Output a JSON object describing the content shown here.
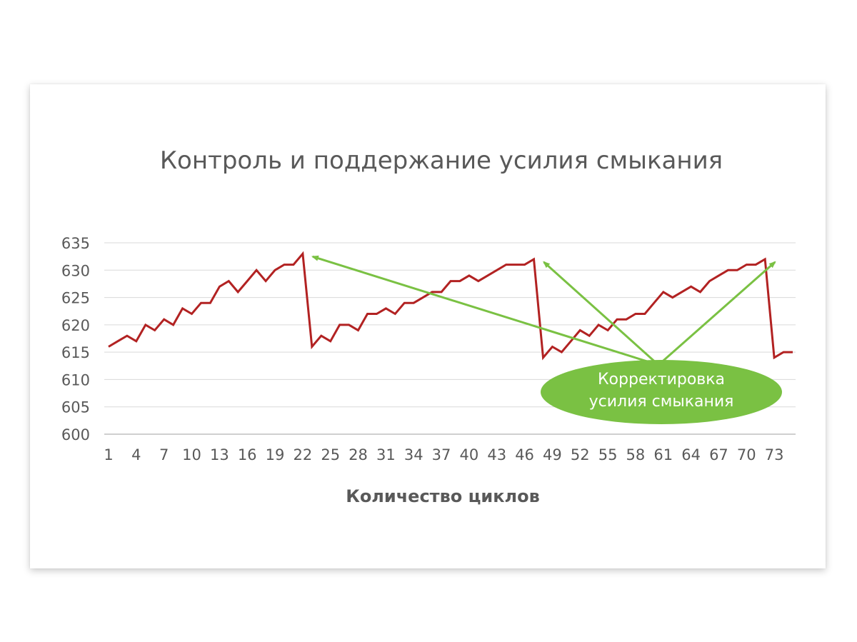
{
  "chart_data": {
    "type": "line",
    "title": "Контроль и поддержание усилия смыкания",
    "xlabel": "Количество циклов",
    "ylabel": "",
    "ylim": [
      600,
      635
    ],
    "yticks": [
      600,
      605,
      610,
      615,
      620,
      625,
      630,
      635
    ],
    "x_tick_labels": [
      "1",
      "4",
      "7",
      "10",
      "13",
      "16",
      "19",
      "22",
      "25",
      "28",
      "31",
      "34",
      "37",
      "40",
      "43",
      "46",
      "49",
      "52",
      "55",
      "58",
      "61",
      "64",
      "67",
      "70",
      "73"
    ],
    "grid": true,
    "legend": "none",
    "series": [
      {
        "color": "#b22222",
        "x": [
          1,
          2,
          3,
          4,
          5,
          6,
          7,
          8,
          9,
          10,
          11,
          12,
          13,
          14,
          15,
          16,
          17,
          18,
          19,
          20,
          21,
          22,
          23,
          24,
          25,
          26,
          27,
          28,
          29,
          30,
          31,
          32,
          33,
          34,
          35,
          36,
          37,
          38,
          39,
          40,
          41,
          42,
          43,
          44,
          45,
          46,
          47,
          48,
          49,
          50,
          51,
          52,
          53,
          54,
          55,
          56,
          57,
          58,
          59,
          60,
          61,
          62,
          63,
          64,
          65,
          66,
          67,
          68,
          69,
          70,
          71,
          72,
          73,
          74,
          75
        ],
        "values": [
          616,
          617,
          618,
          617,
          620,
          619,
          621,
          620,
          623,
          622,
          624,
          624,
          627,
          628,
          626,
          628,
          630,
          628,
          630,
          631,
          631,
          633,
          616,
          618,
          617,
          620,
          620,
          619,
          622,
          622,
          623,
          622,
          624,
          624,
          625,
          626,
          626,
          628,
          628,
          629,
          628,
          629,
          630,
          631,
          631,
          631,
          632,
          614,
          616,
          615,
          617,
          619,
          618,
          620,
          619,
          621,
          621,
          622,
          622,
          624,
          626,
          625,
          626,
          627,
          626,
          628,
          629,
          630,
          630,
          631,
          631,
          632,
          614,
          615,
          615
        ]
      }
    ],
    "annotation": {
      "lines": [
        "Корректировка",
        "усилия смыкания"
      ],
      "color": "#7ac143",
      "points_to_cycles": [
        22,
        47,
        72
      ]
    }
  }
}
